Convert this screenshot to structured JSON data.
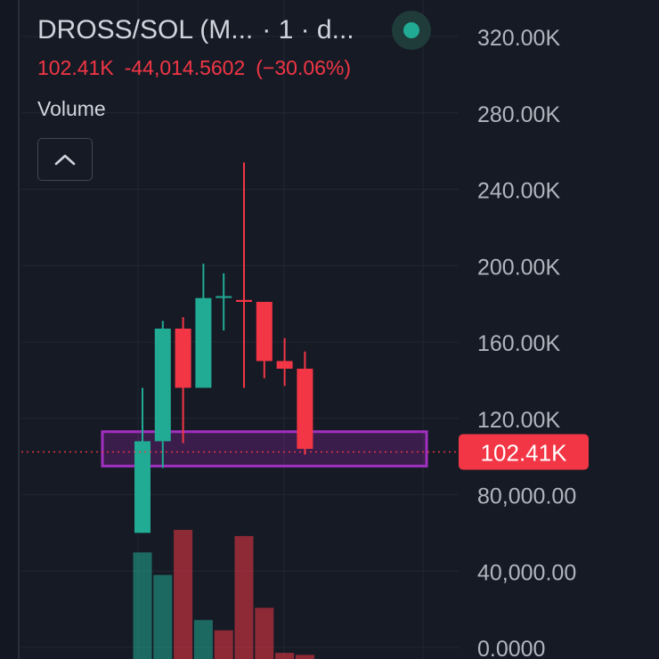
{
  "header": {
    "symbol": "DROSS/SOL (M...",
    "interval": "· 1 · d...",
    "price": "102.41K",
    "change": "-44,014.5602",
    "change_pct": "(−30.06%)",
    "volume_label": "Volume"
  },
  "colors": {
    "background": "#161a25",
    "up": "#22ab94",
    "down": "#f23645",
    "grid": "#232733",
    "axis_text": "#b2b5be",
    "highlight": "#9c27b0"
  },
  "icons": {
    "collapse": "chevron-up-icon",
    "status": "market-status-dot-icon"
  },
  "chart_data": {
    "type": "candlestick",
    "price_axis": {
      "ticks": [
        {
          "value": 320000,
          "label": "320.00K"
        },
        {
          "value": 280000,
          "label": "280.00K"
        },
        {
          "value": 240000,
          "label": "240.00K"
        },
        {
          "value": 200000,
          "label": "200.00K"
        },
        {
          "value": 160000,
          "label": "160.00K"
        },
        {
          "value": 120000,
          "label": "120.00K"
        },
        {
          "value": 80000,
          "label": "80,000.00"
        },
        {
          "value": 40000,
          "label": "40,000.00"
        },
        {
          "value": 0,
          "label": "0.0000"
        }
      ],
      "range": [
        -4000,
        336000
      ]
    },
    "last_price": {
      "value": 102410,
      "label": "102.41K"
    },
    "highlight_zone": {
      "from": 95000,
      "to": 113000
    },
    "candles": [
      {
        "open": 60000,
        "high": 136000,
        "low": 60000,
        "close": 108000
      },
      {
        "open": 108000,
        "high": 171000,
        "low": 94000,
        "close": 167000
      },
      {
        "open": 167000,
        "high": 173000,
        "low": 107000,
        "close": 136000
      },
      {
        "open": 136000,
        "high": 201000,
        "low": 136000,
        "close": 183000
      },
      {
        "open": 184000,
        "high": 196000,
        "low": 166000,
        "close": 184000
      },
      {
        "open": 182000,
        "high": 254000,
        "low": 136000,
        "close": 181000
      },
      {
        "open": 181000,
        "high": 181000,
        "low": 141000,
        "close": 150000
      },
      {
        "open": 150000,
        "high": 162000,
        "low": 137000,
        "close": 146000
      },
      {
        "open": 146000,
        "high": 155000,
        "low": 101000,
        "close": 104000
      }
    ],
    "volume": [
      {
        "value": 52000,
        "direction": "up"
      },
      {
        "value": 41000,
        "direction": "up"
      },
      {
        "value": 63000,
        "direction": "down"
      },
      {
        "value": 19000,
        "direction": "up"
      },
      {
        "value": 14000,
        "direction": "down"
      },
      {
        "value": 60000,
        "direction": "down"
      },
      {
        "value": 25000,
        "direction": "down"
      },
      {
        "value": 3000,
        "direction": "down"
      },
      {
        "value": 2000,
        "direction": "down"
      }
    ]
  }
}
